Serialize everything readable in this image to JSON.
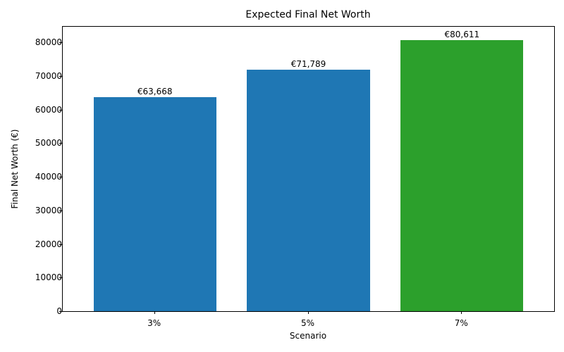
{
  "chart_data": {
    "type": "bar",
    "title": "Expected Final Net Worth",
    "xlabel": "Scenario",
    "ylabel": "Final Net Worth (€)",
    "categories": [
      "3%",
      "5%",
      "7%"
    ],
    "values": [
      63668,
      71789,
      80611
    ],
    "data_labels": [
      "€63,668",
      "€71,789",
      "€80,611"
    ],
    "colors": [
      "#1f77b4",
      "#1f77b4",
      "#2ca02c"
    ],
    "ylim": [
      0,
      84642
    ],
    "yticks": [
      0,
      10000,
      20000,
      30000,
      40000,
      50000,
      60000,
      70000,
      80000
    ],
    "grid": false,
    "legend": null
  }
}
